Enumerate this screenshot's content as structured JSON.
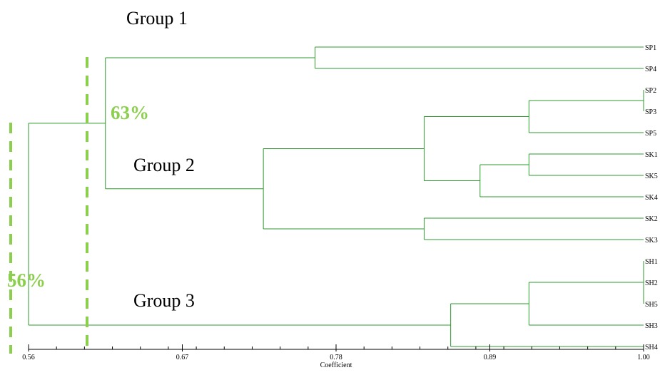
{
  "colors": {
    "line": "#2e9a2e",
    "cut_line": "#8ccf4f",
    "percent": "#8ccf4f",
    "text": "#000000",
    "axis": "#000000"
  },
  "group_labels": {
    "g1": "Group 1",
    "g2": "Group 2",
    "g3": "Group 3"
  },
  "cut_labels": {
    "c63": "63%",
    "c56": "56%"
  },
  "axis": {
    "title": "Coefficient",
    "min": 0.56,
    "max": 1.0,
    "ticks": [
      "0.56",
      "0.67",
      "0.78",
      "0.89",
      "1.00"
    ]
  },
  "leaves": [
    "SP1",
    "SP4",
    "SP2",
    "SP3",
    "SP5",
    "SK1",
    "SK5",
    "SK4",
    "SK2",
    "SK3",
    "SH1",
    "SH2",
    "SH5",
    "SH3",
    "SH4"
  ],
  "tree": {
    "h": 0.56,
    "children": [
      {
        "h": 0.615,
        "children": [
          {
            "h": 0.765,
            "children": [
              "SP1",
              "SP4"
            ]
          },
          {
            "h": 0.728,
            "children": [
              {
                "h": 0.843,
                "children": [
                  {
                    "h": 0.918,
                    "children": [
                      {
                        "h": 1.0,
                        "children": [
                          "SP2",
                          "SP3"
                        ]
                      },
                      "SP5"
                    ]
                  },
                  {
                    "h": 0.883,
                    "children": [
                      {
                        "h": 0.918,
                        "children": [
                          "SK1",
                          "SK5"
                        ]
                      },
                      "SK4"
                    ]
                  }
                ]
              },
              {
                "h": 0.843,
                "children": [
                  "SK2",
                  "SK3"
                ]
              }
            ]
          }
        ]
      },
      {
        "h": 0.862,
        "children": [
          {
            "h": 0.918,
            "children": [
              {
                "h": 1.0,
                "children": [
                  "SH1",
                  "SH2",
                  "SH5"
                ]
              },
              "SH3"
            ]
          },
          "SH4"
        ]
      }
    ]
  }
}
